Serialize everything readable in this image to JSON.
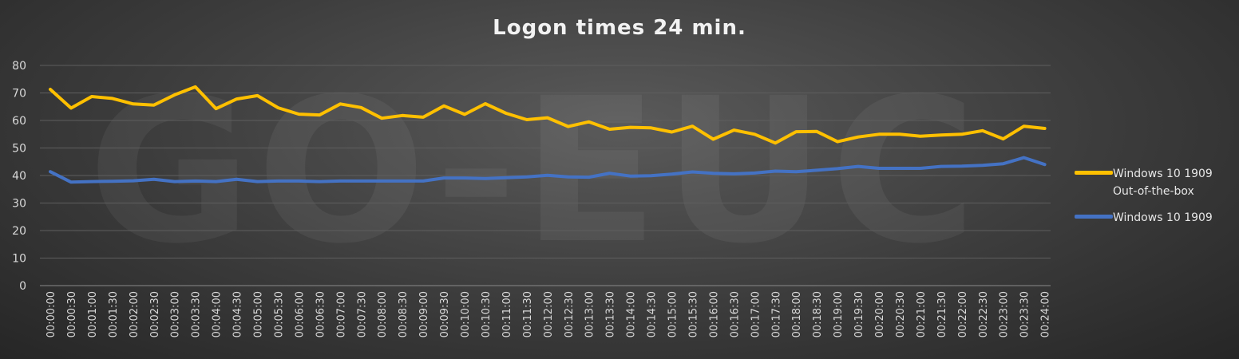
{
  "chart_data": {
    "type": "line",
    "title": "Logon times 24 min.",
    "watermark": "GO-EUC",
    "xlabel": "",
    "ylabel": "",
    "ylim": [
      0,
      80
    ],
    "yticks": [
      0,
      10,
      20,
      30,
      40,
      50,
      60,
      70,
      80
    ],
    "grid": true,
    "legend_position": "right",
    "categories": [
      "00:00:00",
      "00:00:30",
      "00:01:00",
      "00:01:30",
      "00:02:00",
      "00:02:30",
      "00:03:00",
      "00:03:30",
      "00:04:00",
      "00:04:30",
      "00:05:00",
      "00:05:30",
      "00:06:00",
      "00:06:30",
      "00:07:00",
      "00:07:30",
      "00:08:00",
      "00:08:30",
      "00:09:00",
      "00:09:30",
      "00:10:00",
      "00:10:30",
      "00:11:00",
      "00:11:30",
      "00:12:00",
      "00:12:30",
      "00:13:00",
      "00:13:30",
      "00:14:00",
      "00:14:30",
      "00:15:00",
      "00:15:30",
      "00:16:00",
      "00:16:30",
      "00:17:00",
      "00:17:30",
      "00:18:00",
      "00:18:30",
      "00:19:00",
      "00:19:30",
      "00:20:00",
      "00:20:30",
      "00:21:00",
      "00:21:30",
      "00:22:00",
      "00:22:30",
      "00:23:00",
      "00:23:30",
      "00:24:00"
    ],
    "series": [
      {
        "name": "Windows 10 1909\nOut-of-the-box",
        "color": "#FFC000",
        "values": [
          71.3,
          64.5,
          68.7,
          68.0,
          66.0,
          65.6,
          69.3,
          72.2,
          64.3,
          67.8,
          69.0,
          64.6,
          62.3,
          62.0,
          66.0,
          64.7,
          60.8,
          61.8,
          61.2,
          65.3,
          62.2,
          66.1,
          62.6,
          60.3,
          61.0,
          57.8,
          59.5,
          56.8,
          57.5,
          57.3,
          55.8,
          57.9,
          53.2,
          56.5,
          55.0,
          51.8,
          55.9,
          56.0,
          52.3,
          54.0,
          55.0,
          55.0,
          54.3,
          54.7,
          55.0,
          56.3,
          53.3,
          57.9,
          57.1
        ]
      },
      {
        "name": "Windows 10 1909",
        "color": "#4472C4",
        "values": [
          41.4,
          37.6,
          37.8,
          37.9,
          38.1,
          38.6,
          37.8,
          38.0,
          37.8,
          38.6,
          37.8,
          38.0,
          38.0,
          37.8,
          38.0,
          38.0,
          38.0,
          38.0,
          38.0,
          39.1,
          39.1,
          38.9,
          39.2,
          39.5,
          40.1,
          39.5,
          39.4,
          40.8,
          39.8,
          39.9,
          40.5,
          41.3,
          40.8,
          40.6,
          40.9,
          41.6,
          41.4,
          41.9,
          42.5,
          43.3,
          42.6,
          42.6,
          42.6,
          43.3,
          43.4,
          43.7,
          44.3,
          46.5,
          44.0
        ]
      }
    ]
  }
}
